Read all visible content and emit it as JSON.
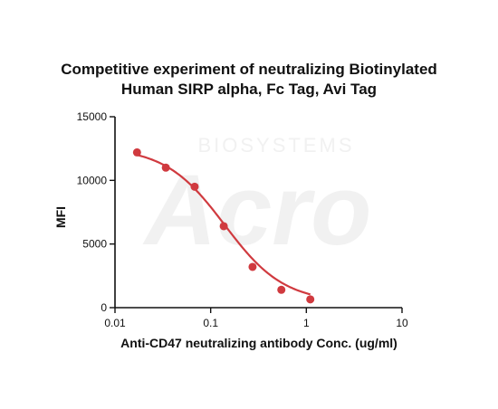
{
  "chart_data": {
    "type": "scatter",
    "title_lines": [
      "Competitive experiment of neutralizing Biotinylated",
      "Human SIRP alpha, Fc Tag, Avi Tag"
    ],
    "xlabel": "Anti-CD47 neutralizing antibody Conc. (ug/ml)",
    "ylabel": "MFI",
    "x_scale": "log",
    "xlim": [
      0.01,
      10
    ],
    "ylim": [
      0,
      15000
    ],
    "x_ticks": [
      0.01,
      0.1,
      1,
      10
    ],
    "x_tick_labels": [
      "0.01",
      "0.1",
      "1",
      "10"
    ],
    "y_ticks": [
      0,
      5000,
      10000,
      15000
    ],
    "y_tick_labels": [
      "0",
      "5000",
      "10000",
      "15000"
    ],
    "series": [
      {
        "x": [
          0.017,
          0.034,
          0.068,
          0.137,
          0.274,
          0.548,
          1.1
        ],
        "y": [
          12200,
          11000,
          9500,
          6400,
          3200,
          1400,
          650
        ],
        "color": "#d03a3f"
      }
    ],
    "fit": {
      "top": 12600,
      "bottom": 400,
      "ec50": 0.14,
      "hill": 1.4
    },
    "grid": false,
    "legend": "none"
  },
  "watermark": {
    "brand": "Acro",
    "sub": "BIOSYSTEMS"
  }
}
